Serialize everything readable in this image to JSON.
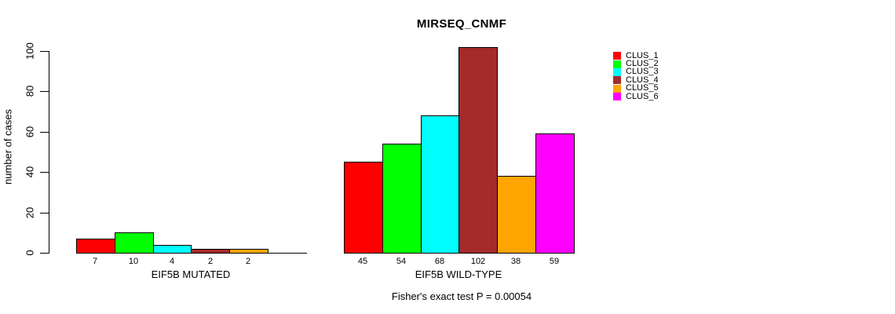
{
  "title": "MIRSEQ_CNMF",
  "annotation": "Fisher's exact test P = 0.00054",
  "chart_data": {
    "type": "bar",
    "title": "MIRSEQ_CNMF",
    "xlabel": "",
    "ylabel": "number of cases",
    "ylim": [
      0,
      100
    ],
    "yticks": [
      0,
      20,
      40,
      60,
      80,
      100
    ],
    "grid": false,
    "legend_position": "right",
    "categories": [
      "EIF5B MUTATED",
      "EIF5B WILD-TYPE"
    ],
    "series": [
      {
        "name": "CLUS_1",
        "color": "#ff0000",
        "values": [
          7,
          45
        ]
      },
      {
        "name": "CLUS_2",
        "color": "#00ff00",
        "values": [
          10,
          54
        ]
      },
      {
        "name": "CLUS_3",
        "color": "#00ffff",
        "values": [
          4,
          68
        ]
      },
      {
        "name": "CLUS_4",
        "color": "#a52a2a",
        "values": [
          2,
          102
        ]
      },
      {
        "name": "CLUS_5",
        "color": "#ffa500",
        "values": [
          2,
          38
        ]
      },
      {
        "name": "CLUS_6",
        "color": "#ff00ff",
        "values": [
          0,
          59
        ]
      }
    ],
    "bar_value_labels": {
      "EIF5B MUTATED": [
        "7",
        "10",
        "4",
        "2",
        "2",
        ""
      ],
      "EIF5B WILD-TYPE": [
        "45",
        "54",
        "68",
        "102",
        "38",
        "59"
      ]
    },
    "annotation": "Fisher's exact test P = 0.00054",
    "axis_color": "#000000",
    "background_color": "#ffffff"
  }
}
